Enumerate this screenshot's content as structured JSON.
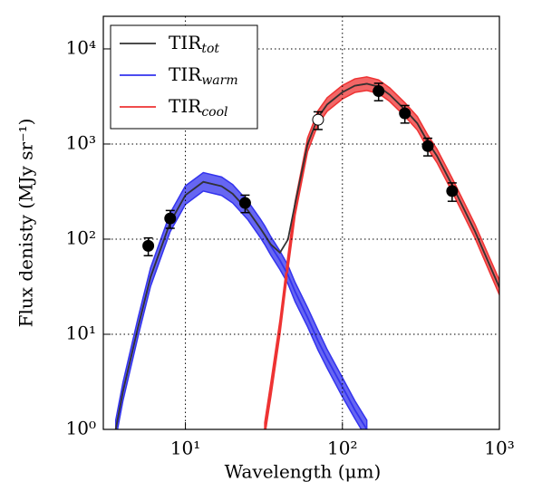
{
  "chart_data": {
    "type": "line",
    "xlabel": "Wavelength (μm)",
    "ylabel": "Flux denisty (MJy sr⁻¹)",
    "log_x": true,
    "log_y": true,
    "grid": true,
    "legend": "upper left",
    "xlim": [
      3,
      1000
    ],
    "ylim": [
      1,
      22000
    ],
    "xticks": [
      {
        "value": 10,
        "label": "10¹"
      },
      {
        "value": 100,
        "label": "10²"
      },
      {
        "value": 1000,
        "label": "10³"
      }
    ],
    "yticks": [
      {
        "value": 1,
        "label": "10⁰"
      },
      {
        "value": 10,
        "label": "10¹"
      },
      {
        "value": 100,
        "label": "10²"
      },
      {
        "value": 1000,
        "label": "10³"
      },
      {
        "value": 10000,
        "label": "10⁴"
      }
    ],
    "x": [
      3.6,
      4,
      5,
      6,
      8,
      10,
      13,
      17,
      20,
      25,
      30,
      32,
      35,
      40,
      45,
      50,
      60,
      70,
      80,
      100,
      120,
      143,
      170,
      200,
      250,
      300,
      350,
      400,
      500,
      700,
      1000
    ],
    "series": [
      {
        "name": "TIR",
        "sub": "tot",
        "color": "#333333",
        "values": [
          1,
          2.5,
          12,
          40,
          150,
          290,
          400,
          360,
          300,
          200,
          130,
          111,
          88,
          72,
          99,
          238,
          995,
          1908,
          2606,
          3503,
          4102,
          4301,
          4000,
          3300,
          2300,
          1650,
          1050,
          750,
          370,
          120,
          31
        ]
      },
      {
        "name": "TIR",
        "sub": "warm",
        "color": "#3333ee",
        "values": [
          1,
          2.5,
          12,
          40,
          150,
          290,
          400,
          360,
          300,
          200,
          130,
          110,
          85,
          60,
          42,
          28,
          15,
          8.5,
          5.5,
          2.8,
          1.6,
          1,
          null,
          null,
          null,
          null,
          null,
          null,
          null,
          null,
          null
        ],
        "lower": [
          0.8,
          2,
          9.6,
          32,
          120,
          232,
          320,
          288,
          240,
          160,
          104,
          88,
          68,
          48,
          34,
          22,
          12,
          6.8,
          4.4,
          2.2,
          1.3,
          0.8,
          null,
          null,
          null,
          null,
          null,
          null,
          null,
          null,
          null
        ],
        "upper": [
          1.25,
          3.1,
          15,
          50,
          188,
          363,
          500,
          450,
          375,
          250,
          163,
          138,
          106,
          75,
          53,
          35,
          19,
          11,
          6.9,
          3.5,
          2,
          1.25,
          null,
          null,
          null,
          null,
          null,
          null,
          null,
          null,
          null
        ]
      },
      {
        "name": "TIR",
        "sub": "cool",
        "color": "#ee3333",
        "values": [
          null,
          null,
          null,
          null,
          null,
          null,
          null,
          null,
          null,
          null,
          null,
          1,
          2.6,
          12,
          57,
          210,
          980,
          1900,
          2600,
          3500,
          4100,
          4300,
          4000,
          3300,
          2300,
          1650,
          1050,
          750,
          370,
          120,
          31
        ],
        "lower": [
          null,
          null,
          null,
          null,
          null,
          null,
          null,
          null,
          null,
          null,
          null,
          0.85,
          2.2,
          10,
          48,
          179,
          833,
          1615,
          2210,
          2975,
          3485,
          3655,
          3400,
          2805,
          1955,
          1403,
          893,
          638,
          315,
          102,
          26
        ],
        "upper": [
          null,
          null,
          null,
          null,
          null,
          null,
          null,
          null,
          null,
          null,
          null,
          1.18,
          3.1,
          14,
          67,
          248,
          1156,
          2242,
          3068,
          4130,
          4838,
          5074,
          4720,
          3894,
          2714,
          1947,
          1239,
          885,
          437,
          142,
          37
        ]
      }
    ],
    "points": {
      "x": [
        5.8,
        8,
        24,
        70,
        170,
        250,
        350,
        500
      ],
      "values": [
        85,
        165,
        240,
        1800,
        3600,
        2100,
        950,
        320
      ],
      "errors": [
        18,
        35,
        50,
        380,
        750,
        440,
        200,
        70
      ],
      "filled": [
        true,
        true,
        true,
        false,
        true,
        true,
        true,
        true
      ]
    }
  }
}
